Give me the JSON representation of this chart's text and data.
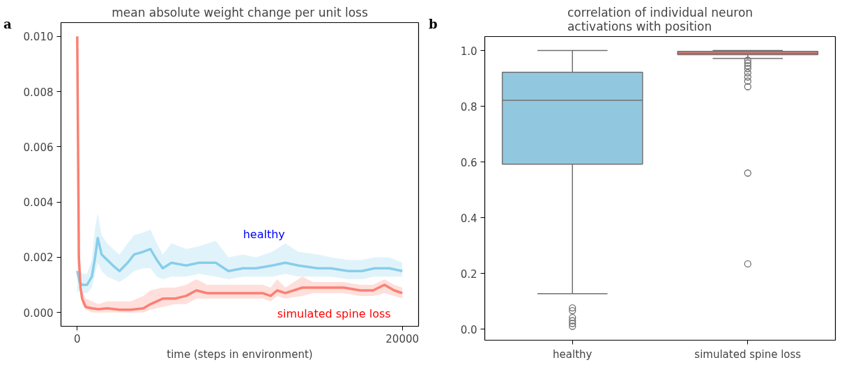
{
  "chart_data": [
    {
      "type": "line",
      "title": "mean absolute weight change per unit loss",
      "xlabel": "time (steps in environment)",
      "annotations": [
        "a"
      ],
      "xlim": [
        -1000,
        21000
      ],
      "xticks": [
        0,
        20000
      ],
      "ylim": [
        -0.0005,
        0.0105
      ],
      "yticks": [
        {
          "value": 0,
          "label": "0.000"
        },
        {
          "value": 0.002,
          "label": "0.002"
        },
        {
          "value": 0.004,
          "label": "0.004"
        },
        {
          "value": 0.006,
          "label": "0.006"
        },
        {
          "value": 0.008,
          "label": "0.008"
        },
        {
          "value": 0.01,
          "label": "0.010"
        }
      ],
      "grid": false,
      "marker": "none",
      "line_style": "solid",
      "series": [
        {
          "name": "healthy",
          "color": "#87ceeb",
          "x": [
            0,
            150,
            300,
            600,
            900,
            1100,
            1260,
            1500,
            1850,
            2200,
            2600,
            3100,
            3500,
            4070,
            4500,
            4900,
            5260,
            5800,
            6700,
            7500,
            8520,
            9300,
            10200,
            11000,
            12000,
            12800,
            13600,
            14800,
            15600,
            16670,
            17500,
            18300,
            19200,
            20000
          ],
          "values": [
            0.0015,
            0.0011,
            0.001,
            0.001,
            0.0013,
            0.002,
            0.0027,
            0.0021,
            0.0019,
            0.0017,
            0.0015,
            0.0018,
            0.0021,
            0.0022,
            0.0023,
            0.0019,
            0.0016,
            0.0018,
            0.0017,
            0.0018,
            0.0018,
            0.0015,
            0.0016,
            0.0016,
            0.0017,
            0.0018,
            0.0017,
            0.0016,
            0.0016,
            0.0015,
            0.0015,
            0.0016,
            0.0016,
            0.0015
          ],
          "lower": [
            0.0007,
            0.0008,
            0.0007,
            0.0007,
            0.0009,
            0.0014,
            0.0018,
            0.0015,
            0.0013,
            0.0012,
            0.0011,
            0.0013,
            0.0015,
            0.0016,
            0.0016,
            0.0013,
            0.0012,
            0.0013,
            0.0013,
            0.0014,
            0.0013,
            0.0012,
            0.0013,
            0.0013,
            0.0013,
            0.0014,
            0.0013,
            0.0013,
            0.0013,
            0.0012,
            0.0012,
            0.0013,
            0.0013,
            0.0013
          ],
          "upper": [
            0.0028,
            0.0016,
            0.0014,
            0.0014,
            0.0019,
            0.0031,
            0.0036,
            0.0028,
            0.0025,
            0.0023,
            0.0021,
            0.0025,
            0.0028,
            0.0029,
            0.003,
            0.0025,
            0.0021,
            0.0025,
            0.0023,
            0.0024,
            0.0026,
            0.002,
            0.0021,
            0.002,
            0.0022,
            0.0025,
            0.0022,
            0.0021,
            0.002,
            0.0019,
            0.0019,
            0.002,
            0.002,
            0.0018
          ]
        },
        {
          "name": "simulated spine loss",
          "color": "#fa8072",
          "x": [
            0,
            100,
            200,
            300,
            520,
            900,
            1300,
            1850,
            2600,
            3300,
            4070,
            4500,
            5260,
            6000,
            6700,
            7330,
            8000,
            8520,
            9500,
            10500,
            11400,
            11900,
            12300,
            12800,
            13850,
            14500,
            15500,
            16400,
            17400,
            18200,
            18900,
            19500,
            20000
          ],
          "values": [
            0.01,
            0.002,
            0.0009,
            0.0005,
            0.0002,
            0.00015,
            0.00012,
            0.00015,
            0.0001,
            0.0001,
            0.00015,
            0.0003,
            0.0005,
            0.0005,
            0.0006,
            0.0008,
            0.0007,
            0.0007,
            0.0007,
            0.0007,
            0.0007,
            0.0006,
            0.0008,
            0.0007,
            0.0009,
            0.0009,
            0.0009,
            0.0009,
            0.0008,
            0.0008,
            0.001,
            0.0008,
            0.0007
          ],
          "lower": [
            0.01,
            0.0018,
            0.0007,
            0.0003,
            0.0001,
            0.0,
            0.0,
            0.0,
            0.0,
            0.0,
            0.0,
            0.0001,
            0.0002,
            0.0003,
            0.0003,
            0.0005,
            0.0005,
            0.0005,
            0.0005,
            0.0005,
            0.0005,
            0.0004,
            0.0006,
            0.0005,
            0.0006,
            0.0007,
            0.0007,
            0.0007,
            0.0006,
            0.0006,
            0.0007,
            0.0006,
            0.0005
          ],
          "upper": [
            0.01,
            0.0022,
            0.0012,
            0.0008,
            0.0005,
            0.0004,
            0.0003,
            0.0004,
            0.0004,
            0.0004,
            0.0006,
            0.0008,
            0.0009,
            0.0009,
            0.001,
            0.0012,
            0.001,
            0.001,
            0.001,
            0.001,
            0.001,
            0.0009,
            0.0012,
            0.0009,
            0.0013,
            0.0011,
            0.0011,
            0.0011,
            0.001,
            0.001,
            0.0012,
            0.001,
            0.0009
          ]
        }
      ]
    },
    {
      "type": "box",
      "title": "correlation of individual neuron\nactivations with position",
      "annotations": [
        "b"
      ],
      "categories": [
        "healthy",
        "simulated spine loss"
      ],
      "ylim": [
        -0.04,
        1.05
      ],
      "yticks": [
        {
          "value": 0,
          "label": "0.0"
        },
        {
          "value": 0.2,
          "label": "0.2"
        },
        {
          "value": 0.4,
          "label": "0.4"
        },
        {
          "value": 0.6,
          "label": "0.6"
        },
        {
          "value": 0.8,
          "label": "0.8"
        },
        {
          "value": 1,
          "label": "1.0"
        }
      ],
      "grid": false,
      "series": [
        {
          "colors": [
            "#92c8df",
            "#fa8072"
          ],
          "boxes": [
            {
              "low": 0.127,
              "q1": 0.592,
              "median": 0.821,
              "q3": 0.922,
              "high": 1.0,
              "outliers": [
                0.076,
                0.066,
                0.041,
                0.03,
                0.02,
                0.01
              ]
            },
            {
              "low": 0.971,
              "q1": 0.985,
              "median": 0.99,
              "q3": 0.997,
              "high": 1.0,
              "outliers": [
                0.965,
                0.955,
                0.945,
                0.935,
                0.92,
                0.905,
                0.89,
                0.87,
                0.56,
                0.234
              ]
            }
          ]
        }
      ]
    }
  ]
}
